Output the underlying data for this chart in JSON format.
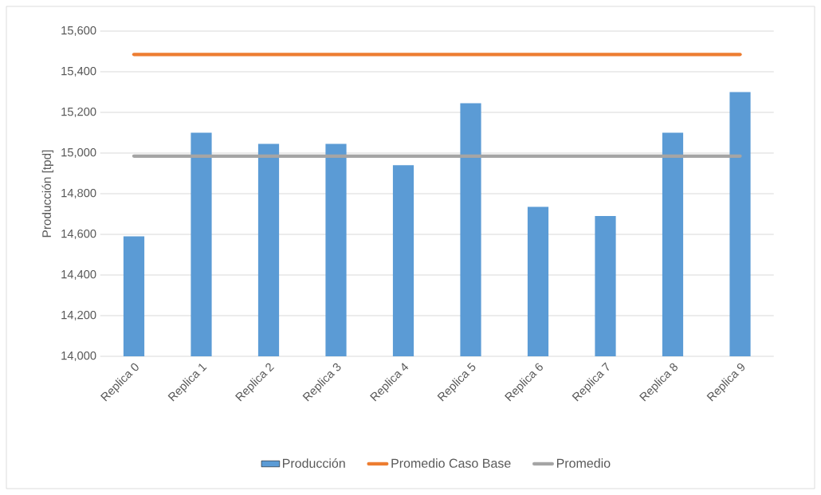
{
  "chart_data": {
    "type": "bar",
    "ylabel": "Producción [tpd]",
    "categories": [
      "Replica 0",
      "Replica 1",
      "Replica 2",
      "Replica 3",
      "Replica 4",
      "Replica 5",
      "Replica 6",
      "Replica 7",
      "Replica 8",
      "Replica 9"
    ],
    "series": [
      {
        "name": "Producción",
        "type": "bar",
        "color": "#5b9bd5",
        "values": [
          14590,
          15100,
          15045,
          15045,
          14940,
          15245,
          14735,
          14690,
          15100,
          15300
        ]
      },
      {
        "name": "Promedio Caso Base",
        "type": "line",
        "color": "#ed7d31",
        "values": [
          15485,
          15485,
          15485,
          15485,
          15485,
          15485,
          15485,
          15485,
          15485,
          15485
        ]
      },
      {
        "name": "Promedio",
        "type": "line",
        "color": "#a5a5a5",
        "values": [
          14985,
          14985,
          14985,
          14985,
          14985,
          14985,
          14985,
          14985,
          14985,
          14985
        ]
      }
    ],
    "ylim": [
      14000,
      15600
    ],
    "yticks": [
      {
        "value": 14000,
        "label": "14,000"
      },
      {
        "value": 14200,
        "label": "14,200"
      },
      {
        "value": 14400,
        "label": "14,400"
      },
      {
        "value": 14600,
        "label": "14,600"
      },
      {
        "value": 14800,
        "label": "14,800"
      },
      {
        "value": 15000,
        "label": "15,000"
      },
      {
        "value": 15200,
        "label": "15,200"
      },
      {
        "value": 15400,
        "label": "15,400"
      },
      {
        "value": 15600,
        "label": "15,600"
      }
    ],
    "grid": "y",
    "legend": "bottom"
  }
}
